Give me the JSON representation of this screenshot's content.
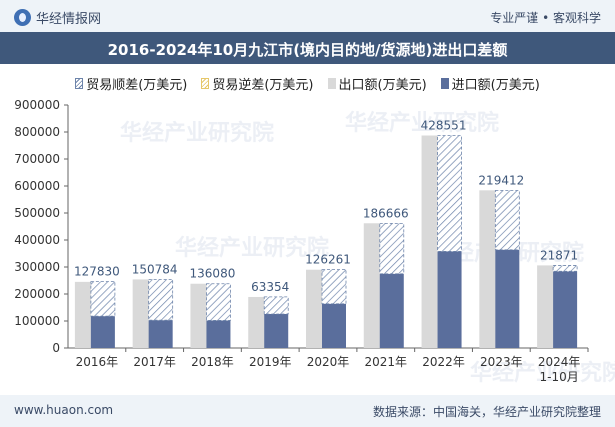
{
  "header": {
    "brand": "华经情报网",
    "tagline": "专业严谨 • 客观科学"
  },
  "footer": {
    "site": "www.huaon.com",
    "source": "数据来源：中国海关，华经产业研究院整理"
  },
  "watermark": "华经产业研究院",
  "legend": {
    "surplus": "贸易顺差(万美元)",
    "deficit": "贸易逆差(万美元)",
    "export": "出口额(万美元)",
    "import": "进口额(万美元)"
  },
  "colors": {
    "export": "#d9d9d9",
    "import": "#5a6e9c",
    "surplus_hatch": "#6d84aa",
    "deficit_hatch": "#e6c76a",
    "value_label": "#3f587b"
  },
  "chart_data": {
    "type": "bar",
    "title": "2016-2024年10月九江市(境内目的地/货源地)进出口差额",
    "categories": [
      "2016年",
      "2017年",
      "2018年",
      "2019年",
      "2020年",
      "2021年",
      "2022年",
      "2023年",
      "2024年\n1-10月"
    ],
    "series": [
      {
        "name": "出口额(万美元)",
        "values": [
          245000,
          254000,
          238000,
          189000,
          290000,
          462000,
          787000,
          584000,
          306000
        ]
      },
      {
        "name": "进口额(万美元)",
        "values": [
          118000,
          103000,
          102000,
          126000,
          164000,
          275000,
          358000,
          364000,
          284000
        ]
      },
      {
        "name": "贸易顺差(万美元)",
        "values": [
          127830,
          150784,
          136080,
          63354,
          126261,
          186666,
          428551,
          219412,
          21871
        ]
      }
    ],
    "yticks": [
      0,
      100000,
      200000,
      300000,
      400000,
      500000,
      600000,
      700000,
      800000,
      900000
    ],
    "ylim": [
      0,
      900000
    ],
    "legend_position": "top-center",
    "grid": false
  }
}
